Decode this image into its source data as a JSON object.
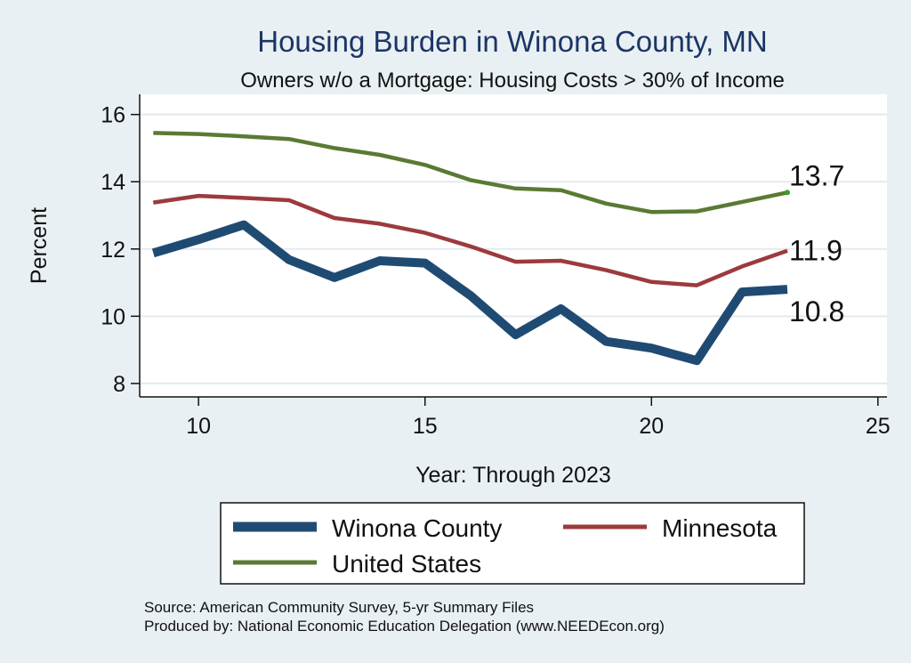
{
  "chart_data": {
    "type": "line",
    "title": "Housing Burden in Winona County, MN",
    "subtitle": "Owners w/o a Mortgage: Housing Costs > 30% of Income",
    "xlabel": "Year: Through 2023",
    "ylabel": "Percent",
    "xlim": [
      8.7,
      25.2
    ],
    "ylim": [
      7.6,
      16.6
    ],
    "xticks": [
      10,
      15,
      20,
      25
    ],
    "yticks": [
      8,
      10,
      12,
      14,
      16
    ],
    "grid": true,
    "x": [
      9,
      10,
      11,
      12,
      13,
      14,
      15,
      16,
      17,
      18,
      19,
      20,
      21,
      22,
      23
    ],
    "series": [
      {
        "name": "United States",
        "color": "#5a7a34",
        "values": [
          15.45,
          15.42,
          15.35,
          15.27,
          15.0,
          14.8,
          14.5,
          14.05,
          13.8,
          13.75,
          13.35,
          13.1,
          13.12,
          13.4,
          13.68
        ]
      },
      {
        "name": "Minnesota",
        "color": "#9c3a3e",
        "values": [
          13.38,
          13.58,
          13.52,
          13.45,
          12.92,
          12.75,
          12.48,
          12.08,
          11.62,
          11.65,
          11.37,
          11.02,
          10.92,
          11.48,
          11.95
        ]
      },
      {
        "name": "Winona County",
        "color": "#1f4b73",
        "values": [
          11.88,
          12.28,
          12.72,
          11.68,
          11.15,
          11.65,
          11.58,
          10.62,
          9.45,
          10.22,
          9.25,
          9.05,
          8.68,
          10.72,
          10.8
        ]
      }
    ],
    "end_labels": {
      "United States": "13.7",
      "Minnesota": "11.9",
      "Winona County": "10.8"
    },
    "legend_placement": "bottom",
    "legend": [
      "Winona County",
      "Minnesota",
      "United States"
    ]
  },
  "source_note": "Source: American Community Survey, 5-yr Summary Files",
  "producer_note": "Produced by: National Economic Education Delegation (www.NEEDEcon.org)"
}
